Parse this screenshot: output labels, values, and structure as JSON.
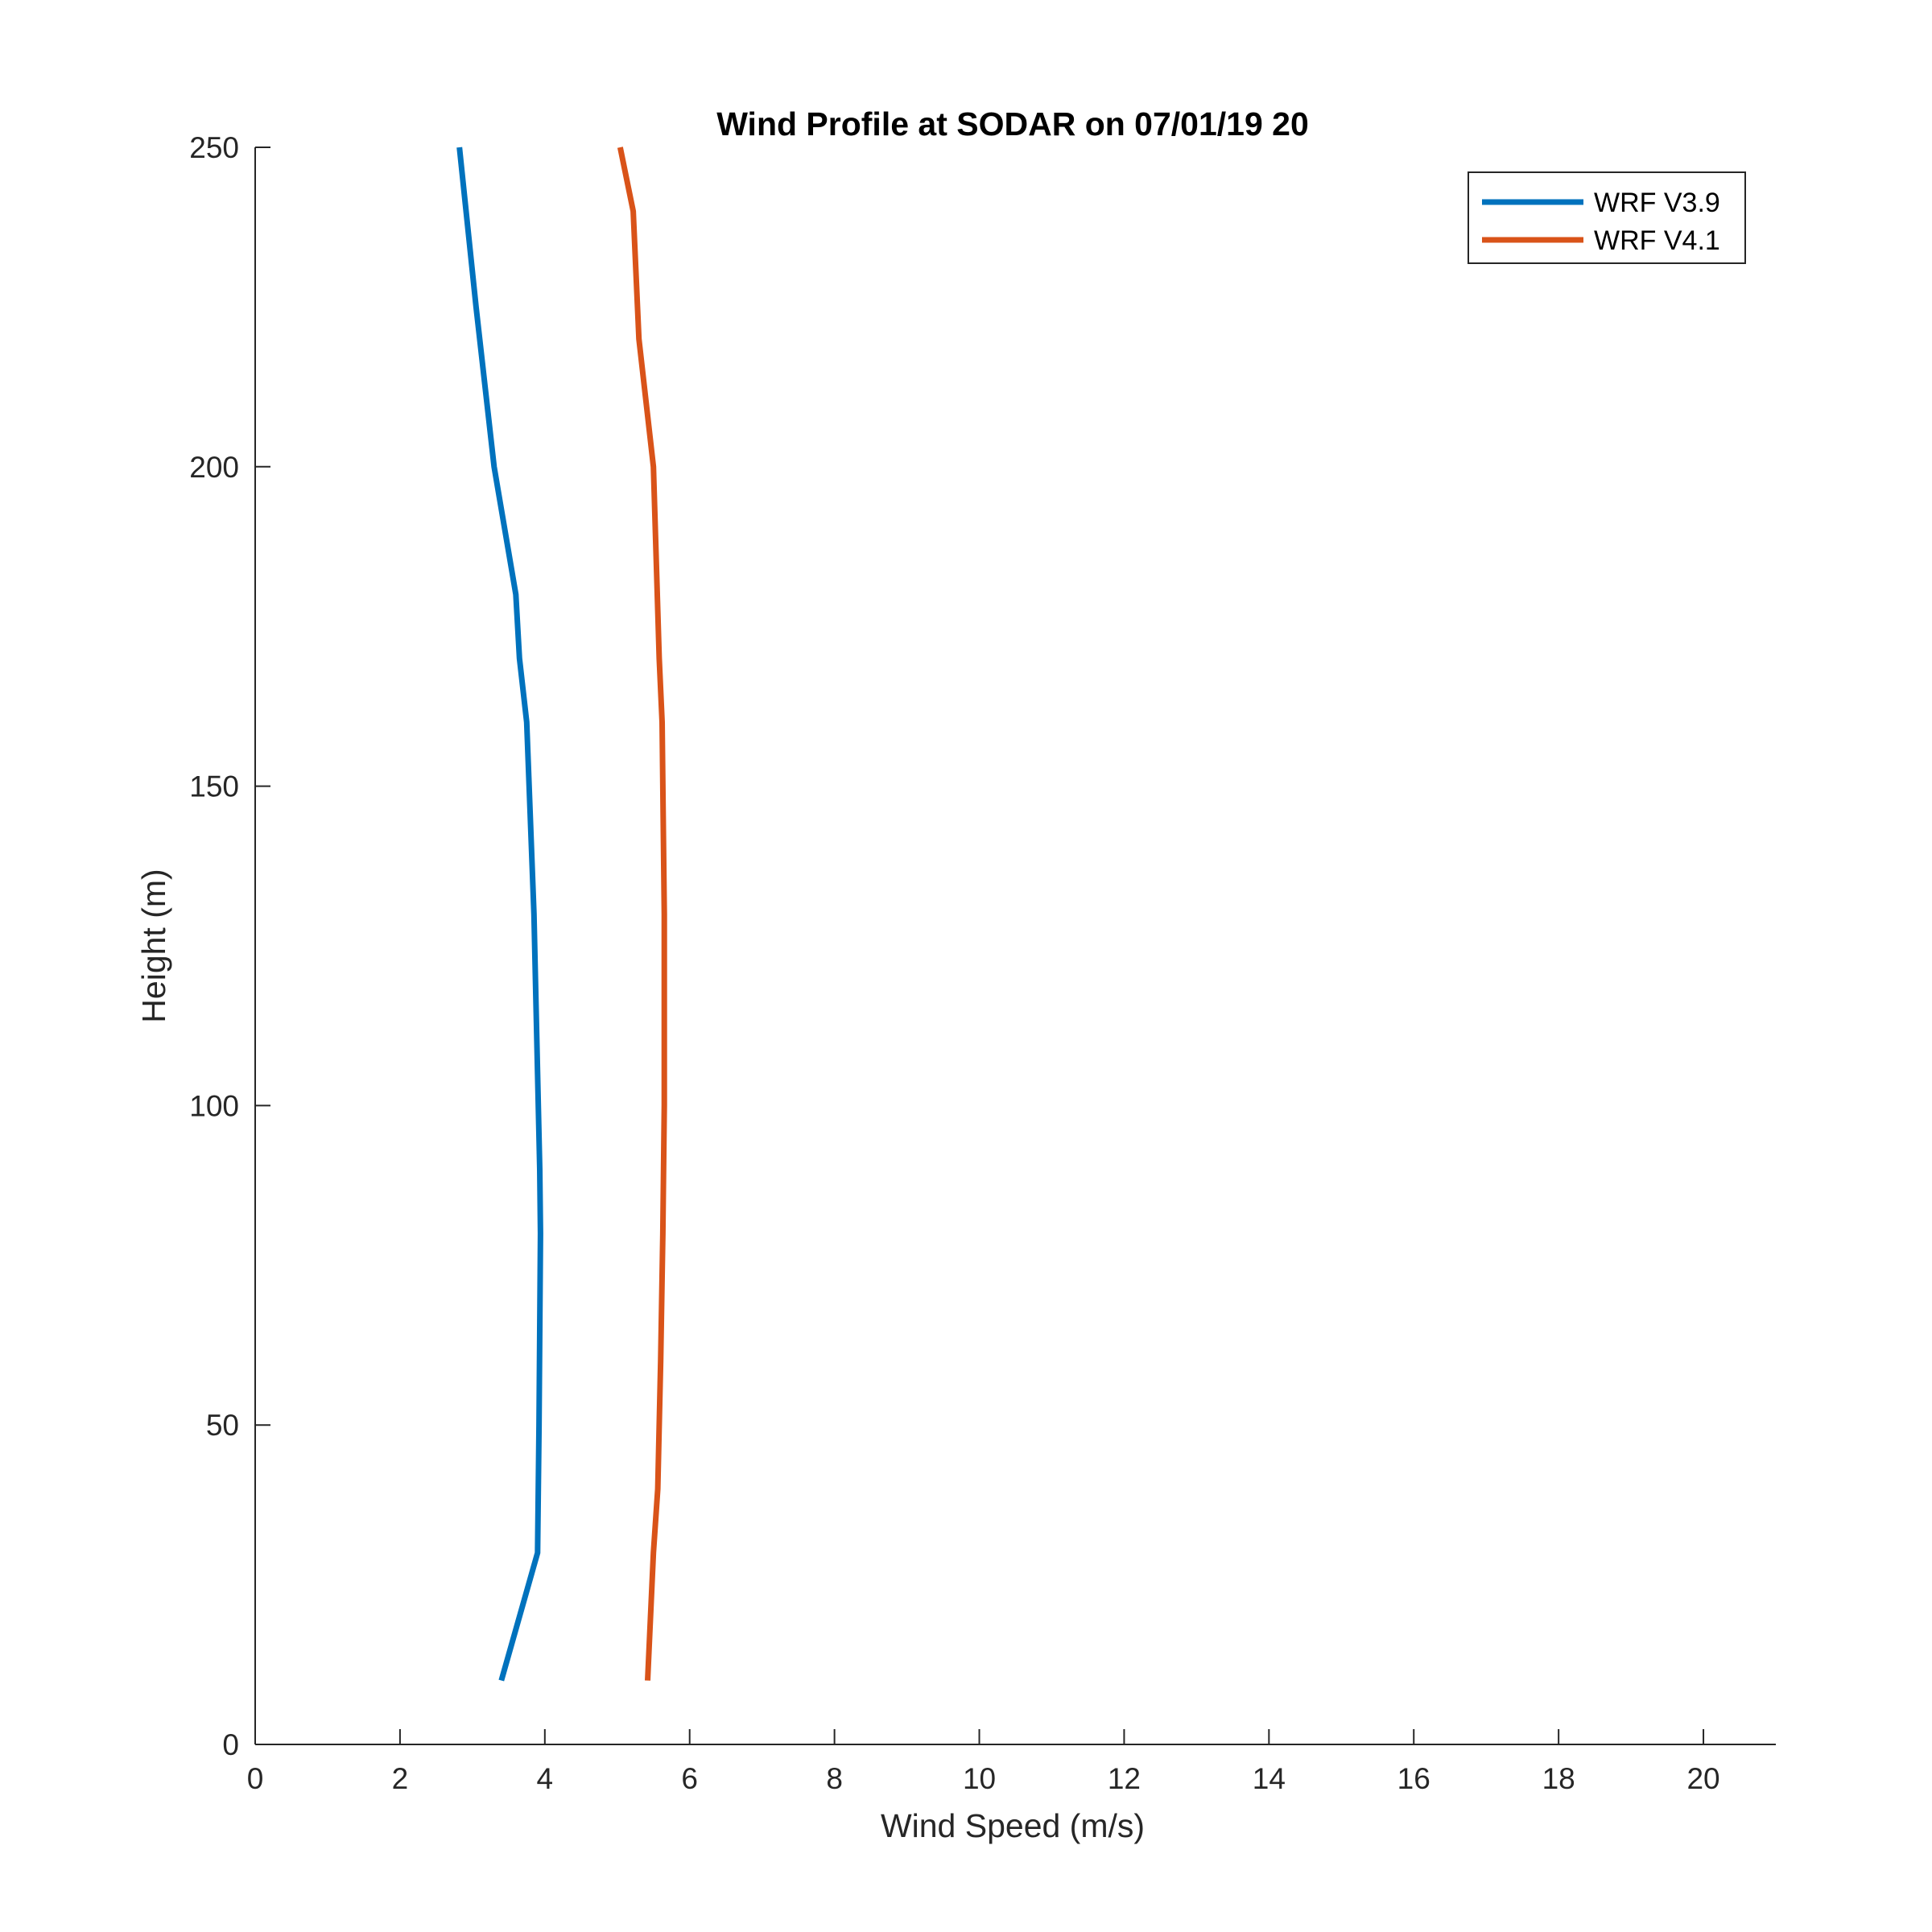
{
  "chart_data": {
    "type": "line",
    "title": "Wind Profile at SODAR on 07/01/19 20",
    "xlabel": "Wind Speed (m/s)",
    "ylabel": "Height (m)",
    "xlim": [
      0,
      21
    ],
    "ylim": [
      0,
      250
    ],
    "xticks": [
      0,
      2,
      4,
      6,
      8,
      10,
      12,
      14,
      16,
      18,
      20
    ],
    "yticks": [
      0,
      50,
      100,
      150,
      200,
      250
    ],
    "grid": false,
    "legend_position": "top-right",
    "series": [
      {
        "name": "WRF V3.9",
        "color": "#0072bd",
        "x": [
          3.4,
          3.9,
          3.92,
          3.94,
          3.93,
          3.85,
          3.75,
          3.65,
          3.6,
          3.3,
          3.05,
          2.82
        ],
        "y": [
          10,
          30,
          50,
          80,
          90,
          130,
          160,
          170,
          180,
          200,
          225,
          250
        ]
      },
      {
        "name": "WRF V4.1",
        "color": "#d95319",
        "x": [
          5.42,
          5.5,
          5.56,
          5.6,
          5.63,
          5.65,
          5.65,
          5.62,
          5.58,
          5.5,
          5.3,
          5.22,
          5.04
        ],
        "y": [
          10,
          30,
          40,
          60,
          80,
          100,
          130,
          160,
          170,
          200,
          220,
          240,
          250
        ]
      }
    ]
  }
}
